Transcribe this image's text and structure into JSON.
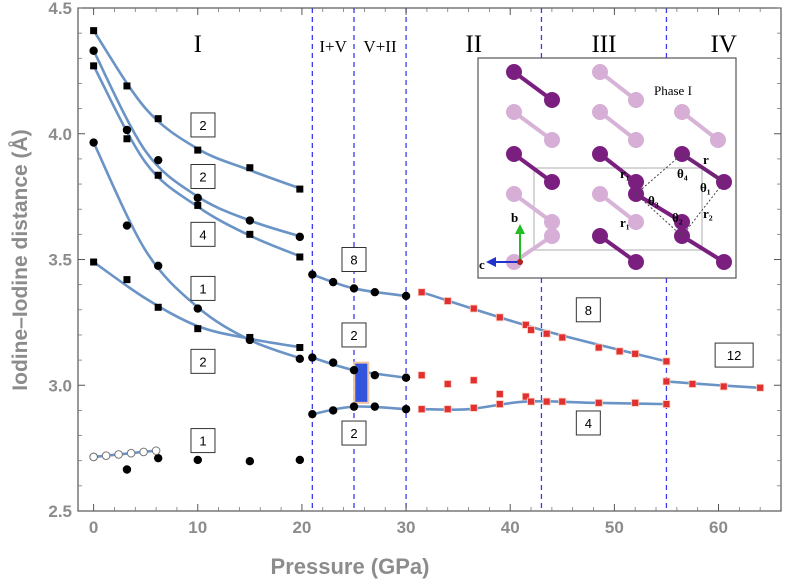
{
  "chart_data": {
    "type": "scatter",
    "xlabel": "Pressure (GPa)",
    "ylabel": "Iodine–Iodine distance (Å)",
    "xlim": [
      -1.5,
      66
    ],
    "ylim": [
      2.5,
      4.5
    ],
    "xticks": [
      "0",
      "10",
      "20",
      "30",
      "40",
      "50",
      "60"
    ],
    "xtick_values": [
      0,
      10,
      20,
      30,
      40,
      50,
      60
    ],
    "yticks": [
      "2.5",
      "3.0",
      "3.5",
      "4.0",
      "4.5"
    ],
    "ytick_values": [
      2.5,
      3.0,
      3.5,
      4.0,
      4.5
    ],
    "phase_boundaries": [
      21,
      25,
      30,
      43,
      55
    ],
    "phase_labels": [
      {
        "text": "I",
        "x": 10
      },
      {
        "text": "I+V",
        "x": 23
      },
      {
        "text": "V+II",
        "x": 27.5
      },
      {
        "text": "II",
        "x": 36.5
      },
      {
        "text": "III",
        "x": 49
      },
      {
        "text": "IV",
        "x": 60.5
      }
    ],
    "series": [
      {
        "name": "phase I 1st neighbor (filled)",
        "marker": "circle",
        "x": [
          0,
          3.2,
          6.2,
          10,
          15,
          19.8
        ],
        "y": [
          2.715,
          2.665,
          2.71,
          2.703,
          2.698,
          2.703
        ]
      },
      {
        "name": "phase I 1st neighbor (open)",
        "marker": "open-circle",
        "x": [
          0,
          1.2,
          2.4,
          3.6,
          4.8,
          6
        ],
        "y": [
          2.715,
          2.72,
          2.725,
          2.73,
          2.735,
          2.74
        ]
      },
      {
        "name": "phase I square markers",
        "marker": "square",
        "x": [
          0,
          3.2,
          6.2,
          10,
          15,
          19.8,
          0,
          3.2,
          6.2,
          10,
          15,
          19.8,
          0,
          3.2,
          6.2,
          10,
          15,
          19.8
        ],
        "y": [
          4.41,
          4.19,
          4.06,
          3.935,
          3.865,
          3.78,
          4.27,
          3.98,
          3.835,
          3.715,
          3.6,
          3.51,
          3.49,
          3.42,
          3.31,
          3.225,
          3.19,
          3.15
        ]
      },
      {
        "name": "phase I circle markers",
        "marker": "circle",
        "x": [
          0,
          3.2,
          6.2,
          10,
          15,
          19.8,
          0,
          3.2,
          6.2,
          10,
          15,
          19.8
        ],
        "y": [
          4.33,
          4.015,
          3.895,
          3.745,
          3.655,
          3.59,
          3.965,
          3.635,
          3.475,
          3.305,
          3.18,
          3.105
        ]
      },
      {
        "name": "I+V / V+II circles",
        "marker": "circle",
        "x": [
          21,
          23,
          25,
          27,
          30,
          21,
          23,
          25,
          27,
          30,
          21,
          23,
          25,
          27,
          30
        ],
        "y": [
          3.44,
          3.41,
          3.385,
          3.37,
          3.355,
          3.11,
          3.09,
          3.06,
          3.04,
          3.03,
          2.885,
          2.9,
          2.915,
          2.915,
          2.905
        ]
      },
      {
        "name": "phase II-IV red squares",
        "marker": "red-square",
        "x": [
          31.5,
          34,
          36.5,
          39,
          41.5,
          42,
          43.5,
          45,
          48.5,
          50.5,
          52,
          55,
          31.5,
          34,
          36.5,
          39,
          41.5,
          43.5,
          45,
          48.5,
          52,
          55,
          34,
          36.5,
          39,
          42,
          43.5,
          55,
          57.5,
          60.5,
          64,
          31.5
        ],
        "y": [
          3.37,
          3.335,
          3.305,
          3.27,
          3.24,
          3.22,
          3.205,
          3.19,
          3.15,
          3.135,
          3.125,
          3.095,
          3.04,
          3.005,
          3.02,
          2.965,
          2.955,
          2.935,
          2.935,
          2.93,
          2.93,
          2.925,
          2.905,
          2.91,
          2.925,
          2.935,
          2.935,
          3.015,
          3.005,
          2.995,
          2.99,
          2.905
        ]
      }
    ],
    "fit_curves": [
      {
        "x": [
          0,
          5,
          10,
          15,
          20
        ],
        "y": [
          4.41,
          4.1,
          3.94,
          3.855,
          3.78
        ]
      },
      {
        "x": [
          0,
          5,
          10,
          15,
          20
        ],
        "y": [
          4.33,
          3.93,
          3.75,
          3.655,
          3.59
        ]
      },
      {
        "x": [
          0,
          5,
          10,
          15,
          20
        ],
        "y": [
          4.27,
          3.885,
          3.71,
          3.595,
          3.51
        ]
      },
      {
        "x": [
          0,
          5,
          10,
          15,
          20
        ],
        "y": [
          3.965,
          3.535,
          3.31,
          3.18,
          3.105
        ]
      },
      {
        "x": [
          0,
          5,
          10,
          15,
          20
        ],
        "y": [
          3.49,
          3.345,
          3.235,
          3.185,
          3.15
        ]
      },
      {
        "x": [
          0,
          6
        ],
        "y": [
          2.715,
          2.74
        ]
      },
      {
        "x": [
          21,
          25,
          30
        ],
        "y": [
          3.44,
          3.385,
          3.355
        ]
      },
      {
        "x": [
          21,
          25,
          30
        ],
        "y": [
          3.11,
          3.06,
          3.03
        ]
      },
      {
        "x": [
          21,
          25,
          30
        ],
        "y": [
          2.885,
          2.915,
          2.905
        ]
      },
      {
        "x": [
          31.5,
          43,
          55
        ],
        "y": [
          3.37,
          3.22,
          3.095
        ]
      },
      {
        "x": [
          31.5,
          36,
          41.5,
          48,
          55
        ],
        "y": [
          2.905,
          2.905,
          2.935,
          2.93,
          2.925
        ]
      },
      {
        "x": [
          55,
          60,
          64
        ],
        "y": [
          3.015,
          3.0,
          2.99
        ]
      }
    ],
    "coordination_labels": [
      {
        "text": "2",
        "x": 10.5,
        "y": 4.035
      },
      {
        "text": "2",
        "x": 10.5,
        "y": 3.83
      },
      {
        "text": "4",
        "x": 10.5,
        "y": 3.6
      },
      {
        "text": "1",
        "x": 10.5,
        "y": 3.385
      },
      {
        "text": "2",
        "x": 10.5,
        "y": 3.095
      },
      {
        "text": "1",
        "x": 10.5,
        "y": 2.78
      },
      {
        "text": "8",
        "x": 25,
        "y": 3.5
      },
      {
        "text": "2",
        "x": 25,
        "y": 3.2
      },
      {
        "text": "2",
        "x": 25,
        "y": 2.81
      },
      {
        "text": "8",
        "x": 47.5,
        "y": 3.3
      },
      {
        "text": "4",
        "x": 47.5,
        "y": 2.85
      },
      {
        "text": "12",
        "x": 61.5,
        "y": 3.12
      }
    ],
    "mixed_region_bar": {
      "x": 25.7,
      "y_low": 2.93,
      "y_high": 3.09
    }
  },
  "inset": {
    "title": "Phase I",
    "axis_b": "b",
    "axis_c": "c",
    "labels": [
      "r₁",
      "r",
      "θ₄",
      "θ₁",
      "θ₃",
      "r₂",
      "r₁",
      "θ₂"
    ],
    "colors": {
      "dark": "#7a1f7f",
      "light": "#d6aed6",
      "bond_dark": "#7a1f7f",
      "bond_light": "#d7b4d7"
    }
  },
  "colors": {
    "fit": "#6a93c6",
    "boundary": "#3a3af0",
    "marker": "#000000",
    "red_marker": "#e03030",
    "bar": "#3355dd",
    "bar_edge": "#f0c4a0",
    "axis_text": "#8c8c8c"
  }
}
